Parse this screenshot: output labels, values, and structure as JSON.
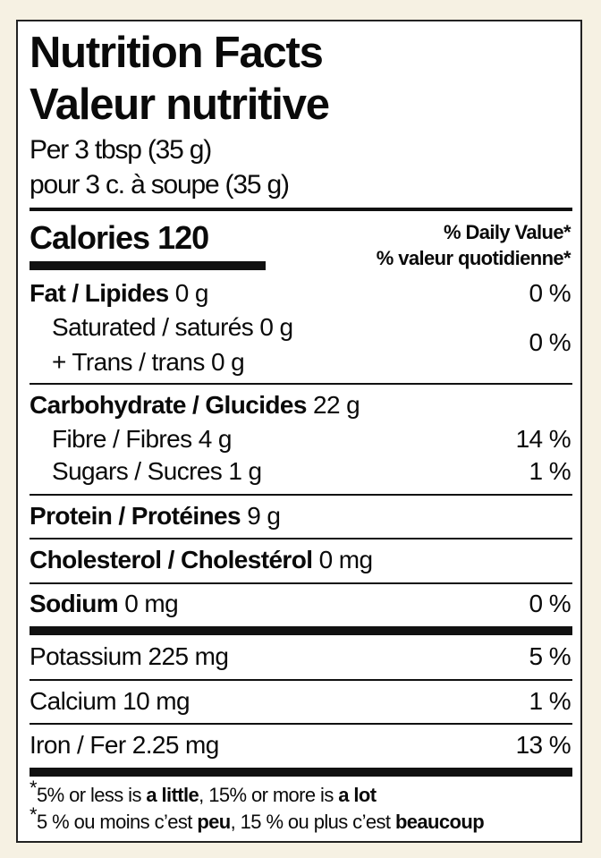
{
  "title_en": "Nutrition Facts",
  "title_fr": "Valeur nutritive",
  "serving_en": "Per 3 tbsp (35 g)",
  "serving_fr": "pour 3 c. à soupe (35 g)",
  "calories_label": "Calories",
  "calories_value": "120",
  "dv_header_en": "% Daily Value*",
  "dv_header_fr": "% valeur quotidienne*",
  "nutrients": {
    "fat": {
      "label": "Fat / Lipides",
      "amount": "0 g",
      "dv": "0 %"
    },
    "saturated": {
      "label": "Saturated / saturés",
      "amount": "0 g"
    },
    "trans": {
      "label": "+ Trans / trans",
      "amount": "0 g",
      "dv": "0 %"
    },
    "carbohydrate": {
      "label": "Carbohydrate / Glucides",
      "amount": "22 g"
    },
    "fibre": {
      "label": "Fibre / Fibres",
      "amount": "4 g",
      "dv": "14 %"
    },
    "sugars": {
      "label": "Sugars / Sucres",
      "amount": "1 g",
      "dv": "1 %"
    },
    "protein": {
      "label": "Protein / Protéines",
      "amount": "9 g"
    },
    "cholesterol": {
      "label": "Cholesterol / Cholestérol",
      "amount": "0 mg"
    },
    "sodium": {
      "label": "Sodium",
      "amount": "0 mg",
      "dv": "0 %"
    },
    "potassium": {
      "label": "Potassium",
      "amount": "225 mg",
      "dv": "5 %"
    },
    "calcium": {
      "label": "Calcium",
      "amount": "10 mg",
      "dv": "1 %"
    },
    "iron": {
      "label": "Iron / Fer",
      "amount": "2.25 mg",
      "dv": "13 %"
    }
  },
  "footnote_en": {
    "asterisk": "*",
    "p1": "5% or less is ",
    "b1": "a little",
    "p2": ", 15% or more is ",
    "b2": "a lot"
  },
  "footnote_fr": {
    "asterisk": "*",
    "p1": "5 % ou moins c’est ",
    "b1": "peu",
    "p2": ", 15 % ou plus c’est ",
    "b2": "beaucoup"
  }
}
